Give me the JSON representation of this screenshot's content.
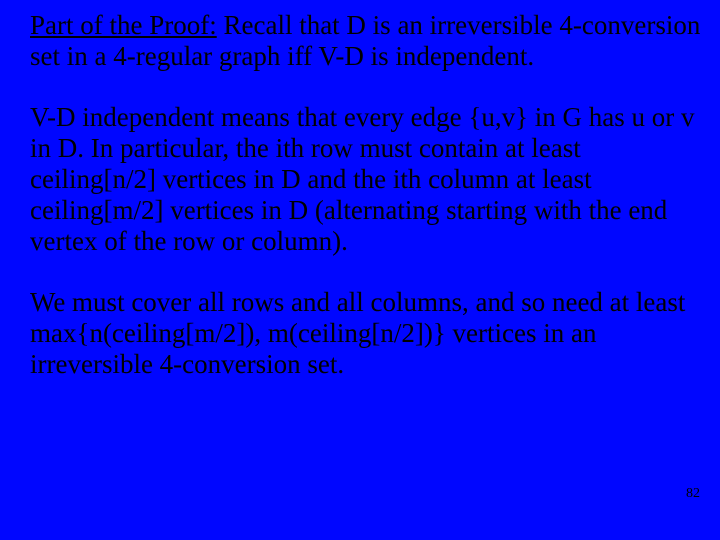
{
  "slide": {
    "background_color": "#0006ff",
    "text_color": "#000000",
    "font_family": "Times New Roman",
    "font_size_pt": 20,
    "paragraphs": {
      "p1_label": "Part of the Proof:",
      "p1_body": " Recall that  D  is an irreversible 4-conversion set in a 4-regular graph iff  V-D  is independent.",
      "p2": "V-D  independent means that every edge  {u,v} in  G  has  u  or  v  in D. In particular, the ith row must contain at least ceiling[n/2] vertices in D and the ith column at least ceiling[m/2] vertices in D (alternating starting with the end vertex of the row or column).",
      "p3": "We must cover all rows and all columns, and so need at least max{n(ceiling[m/2]), m(ceiling[n/2])} vertices in an irreversible 4-conversion set."
    },
    "page_number": "82"
  }
}
